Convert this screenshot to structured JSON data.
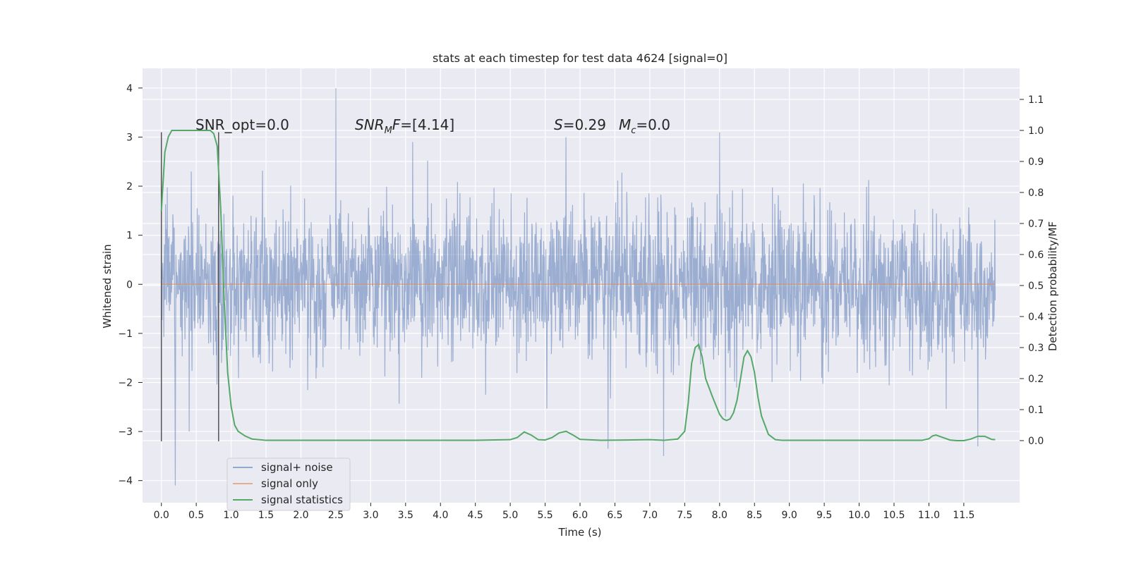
{
  "chart_data": {
    "type": "line",
    "title": "stats at each timestep for test data 4624 [signal=0]",
    "xlabel": "Time (s)",
    "ylabel": "Whitened strain",
    "ylabel_right": "Detection probability/MF",
    "xlim": [
      -0.27,
      12.3
    ],
    "ylim": [
      -4.45,
      4.4
    ],
    "ylim_right": [
      -0.2,
      1.2
    ],
    "x_ticks": [
      0.0,
      0.5,
      1.0,
      1.5,
      2.0,
      2.5,
      3.0,
      3.5,
      4.0,
      4.5,
      5.0,
      5.5,
      6.0,
      6.5,
      7.0,
      7.5,
      8.0,
      8.5,
      9.0,
      9.5,
      10.0,
      10.5,
      11.0,
      11.5
    ],
    "x_tick_labels": [
      "0.0",
      "0.5",
      "1.0",
      "1.5",
      "2.0",
      "2.5",
      "3.0",
      "3.5",
      "4.0",
      "4.5",
      "5.0",
      "5.5",
      "6.0",
      "6.5",
      "7.0",
      "7.5",
      "8.0",
      "8.5",
      "9.0",
      "9.5",
      "10.0",
      "10.5",
      "11.0",
      "11.5"
    ],
    "y_ticks": [
      -4,
      -3,
      -2,
      -1,
      0,
      1,
      2,
      3,
      4
    ],
    "y_tick_labels": [
      "−4",
      "−3",
      "−2",
      "−1",
      "0",
      "1",
      "2",
      "3",
      "4"
    ],
    "y_right_ticks": [
      0.0,
      0.1,
      0.2,
      0.3,
      0.4,
      0.5,
      0.6,
      0.7,
      0.8,
      0.9,
      1.0,
      1.1
    ],
    "y_right_tick_labels": [
      "0.0",
      "0.1",
      "0.2",
      "0.3",
      "0.4",
      "0.5",
      "0.6",
      "0.7",
      "0.8",
      "0.9",
      "1.0",
      "1.1"
    ],
    "grid": true,
    "legend_position": "lower-left",
    "annotations": [
      {
        "text": "SNR_opt=0.0",
        "x": 0.2,
        "y": 3.1
      },
      {
        "text": "SNR_MF=[4.14]",
        "x": 2.6,
        "y": 3.1
      },
      {
        "text": "S=0.29   M_c=0.0",
        "x": 5.6,
        "y": 3.1
      }
    ],
    "window_markers": {
      "x": [
        0.0,
        0.82
      ],
      "y_range": [
        -3.2,
        3.1
      ]
    },
    "series": [
      {
        "name": "signal+ noise",
        "color": "#4c72b0",
        "description": "whitened strain noise, t from 0 to 11.95 s, typical range about -2.2 to 2.2, extremes min -4.1 near t=0.2, max 4.0 near t=2.5",
        "t_range": [
          0.0,
          11.95
        ],
        "peaks_high": [
          [
            0.2,
            3.05
          ],
          [
            2.5,
            4.0
          ],
          [
            3.6,
            2.9
          ],
          [
            5.8,
            3.0
          ],
          [
            8.0,
            3.1
          ],
          [
            11.7,
            3.1
          ]
        ],
        "peaks_low": [
          [
            0.2,
            -4.1
          ],
          [
            6.4,
            -3.35
          ],
          [
            7.2,
            -3.5
          ],
          [
            11.7,
            -3.3
          ],
          [
            0.4,
            -3.0
          ]
        ]
      },
      {
        "name": "signal only",
        "color": "#dd8452",
        "x": [
          0.0,
          11.95
        ],
        "y": [
          0.0,
          0.0
        ]
      },
      {
        "name": "signal statistics",
        "color": "#55a868",
        "axis": "right",
        "x": [
          0.0,
          0.05,
          0.1,
          0.15,
          0.2,
          0.3,
          0.4,
          0.5,
          0.6,
          0.7,
          0.75,
          0.8,
          0.85,
          0.9,
          0.95,
          1.0,
          1.05,
          1.1,
          1.2,
          1.3,
          1.5,
          2.0,
          3.0,
          4.0,
          4.5,
          5.0,
          5.1,
          5.2,
          5.3,
          5.4,
          5.5,
          5.6,
          5.7,
          5.8,
          5.9,
          6.0,
          6.3,
          7.0,
          7.2,
          7.4,
          7.5,
          7.55,
          7.6,
          7.65,
          7.7,
          7.75,
          7.8,
          7.9,
          8.0,
          8.05,
          8.1,
          8.15,
          8.2,
          8.25,
          8.3,
          8.35,
          8.4,
          8.45,
          8.5,
          8.55,
          8.6,
          8.65,
          8.7,
          8.8,
          8.9,
          9.0,
          10.0,
          10.9,
          11.0,
          11.05,
          11.1,
          11.2,
          11.3,
          11.4,
          11.5,
          11.6,
          11.7,
          11.8,
          11.9,
          11.95
        ],
        "y": [
          0.74,
          0.93,
          0.98,
          1.0,
          1.0,
          1.0,
          1.0,
          1.0,
          1.0,
          1.0,
          0.99,
          0.95,
          0.75,
          0.45,
          0.22,
          0.11,
          0.05,
          0.03,
          0.015,
          0.005,
          0.001,
          0.001,
          0.001,
          0.001,
          0.001,
          0.003,
          0.01,
          0.028,
          0.018,
          0.003,
          0.002,
          0.01,
          0.025,
          0.03,
          0.018,
          0.004,
          0.001,
          0.003,
          0.001,
          0.005,
          0.03,
          0.12,
          0.25,
          0.3,
          0.31,
          0.27,
          0.2,
          0.14,
          0.085,
          0.07,
          0.065,
          0.07,
          0.09,
          0.13,
          0.2,
          0.27,
          0.29,
          0.27,
          0.22,
          0.14,
          0.08,
          0.05,
          0.02,
          0.003,
          0.001,
          0.001,
          0.001,
          0.001,
          0.006,
          0.015,
          0.018,
          0.01,
          0.002,
          0.0,
          0.0,
          0.005,
          0.014,
          0.014,
          0.004,
          0.003
        ]
      }
    ]
  }
}
